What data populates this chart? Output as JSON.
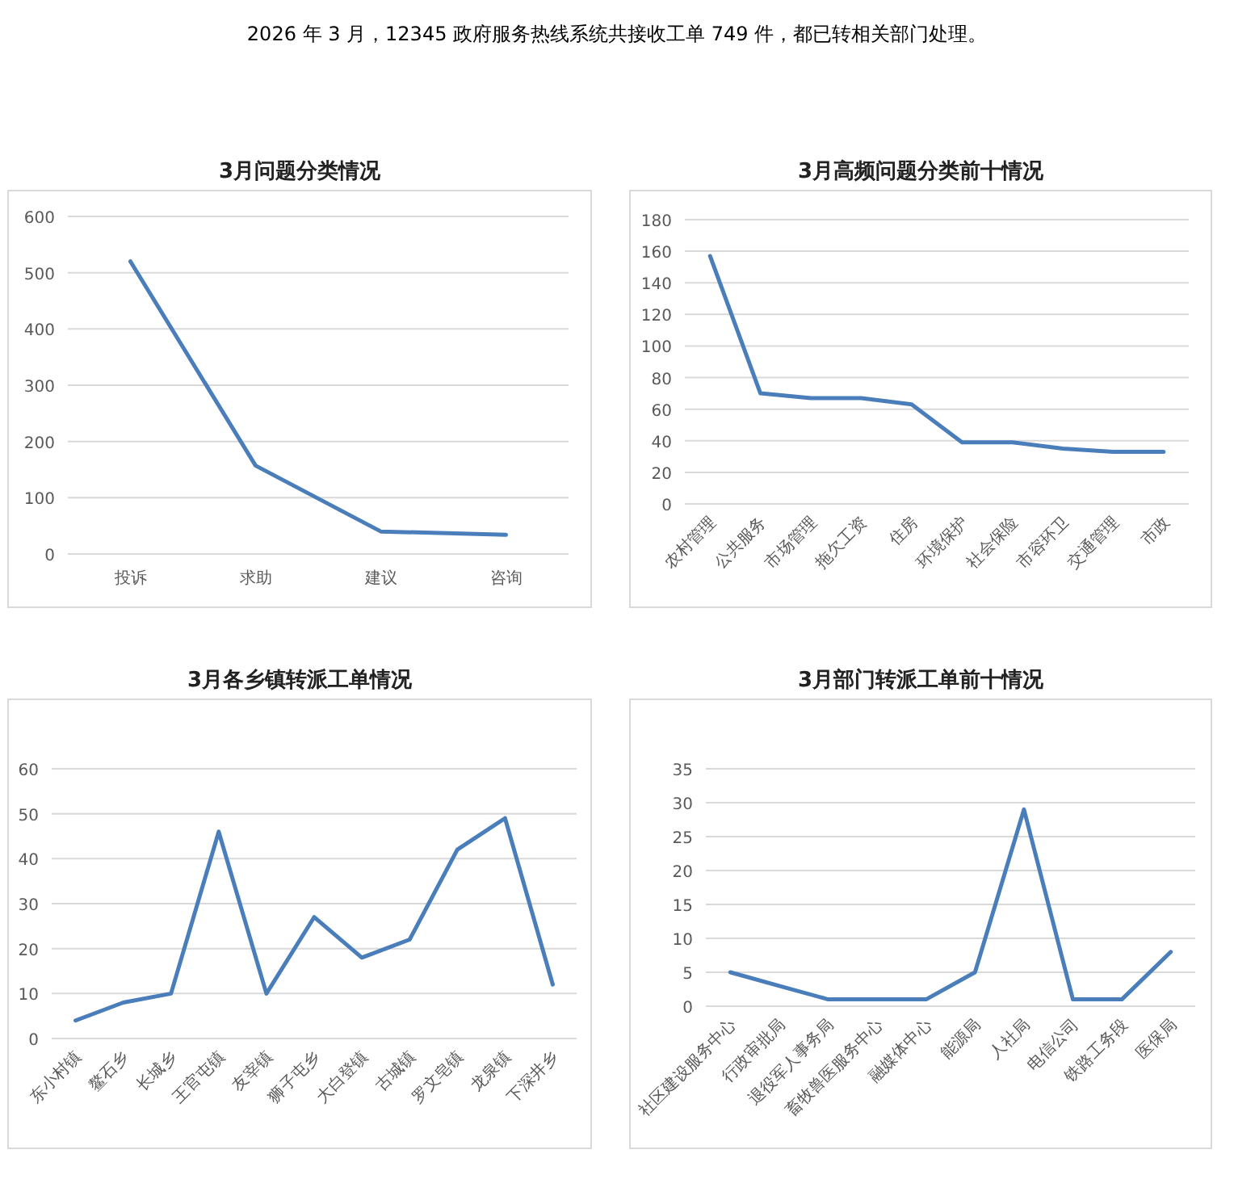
{
  "chart_data": [
    {
      "type": "line",
      "title": "3月问题分类情况",
      "annotations": [
        "2026 年 3 月，12345 政府服务热线系统共接收工单 749 件，都已转相关部门处理。"
      ],
      "categories": [
        "投诉",
        "求助",
        "建议",
        "咨询"
      ],
      "values": [
        520,
        157,
        40,
        34
      ],
      "color": "#4a7ebb",
      "ylim": [
        0,
        600
      ],
      "yticks": [
        0,
        100,
        200,
        300,
        400,
        500,
        600
      ],
      "grid": "y"
    },
    {
      "type": "line",
      "title": "3月高频问题分类前十情况",
      "categories": [
        "农村管理",
        "公共服务",
        "市场管理",
        "拖欠工资",
        "住房",
        "环境保护",
        "社会保险",
        "市容环卫",
        "交通管理",
        "市政"
      ],
      "values": [
        157,
        70,
        67,
        67,
        63,
        39,
        39,
        35,
        33,
        33
      ],
      "color": "#4a7ebb",
      "ylim": [
        0,
        180
      ],
      "yticks": [
        0,
        20,
        40,
        60,
        80,
        100,
        120,
        140,
        160,
        180
      ],
      "grid": "y"
    },
    {
      "type": "line",
      "title": "3月各乡镇转派工单情况",
      "categories": [
        "东小村镇",
        "鳌石乡",
        "长城乡",
        "王官屯镇",
        "友宰镇",
        "狮子屯乡",
        "大白登镇",
        "古城镇",
        "罗文皂镇",
        "龙泉镇",
        "下深井乡"
      ],
      "values": [
        4,
        8,
        10,
        46,
        10,
        27,
        18,
        22,
        42,
        49,
        12
      ],
      "color": "#4a7ebb",
      "ylim": [
        0,
        60
      ],
      "yticks": [
        0,
        10,
        20,
        30,
        40,
        50,
        60
      ],
      "grid": "y"
    },
    {
      "type": "line",
      "title": "3月部门转派工单前十情况",
      "categories": [
        "社区建设服务中心",
        "行政审批局",
        "退役军人事务局",
        "畜牧兽医服务中心",
        "融媒体中心",
        "能源局",
        "人社局",
        "电信公司",
        "铁路工务段",
        "医保局"
      ],
      "values": [
        5,
        3,
        1,
        1,
        1,
        5,
        29,
        1,
        1,
        8
      ],
      "color": "#4a7ebb",
      "ylim": [
        0,
        35
      ],
      "yticks": [
        0,
        5,
        10,
        15,
        20,
        25,
        30,
        35
      ],
      "grid": "y"
    }
  ]
}
